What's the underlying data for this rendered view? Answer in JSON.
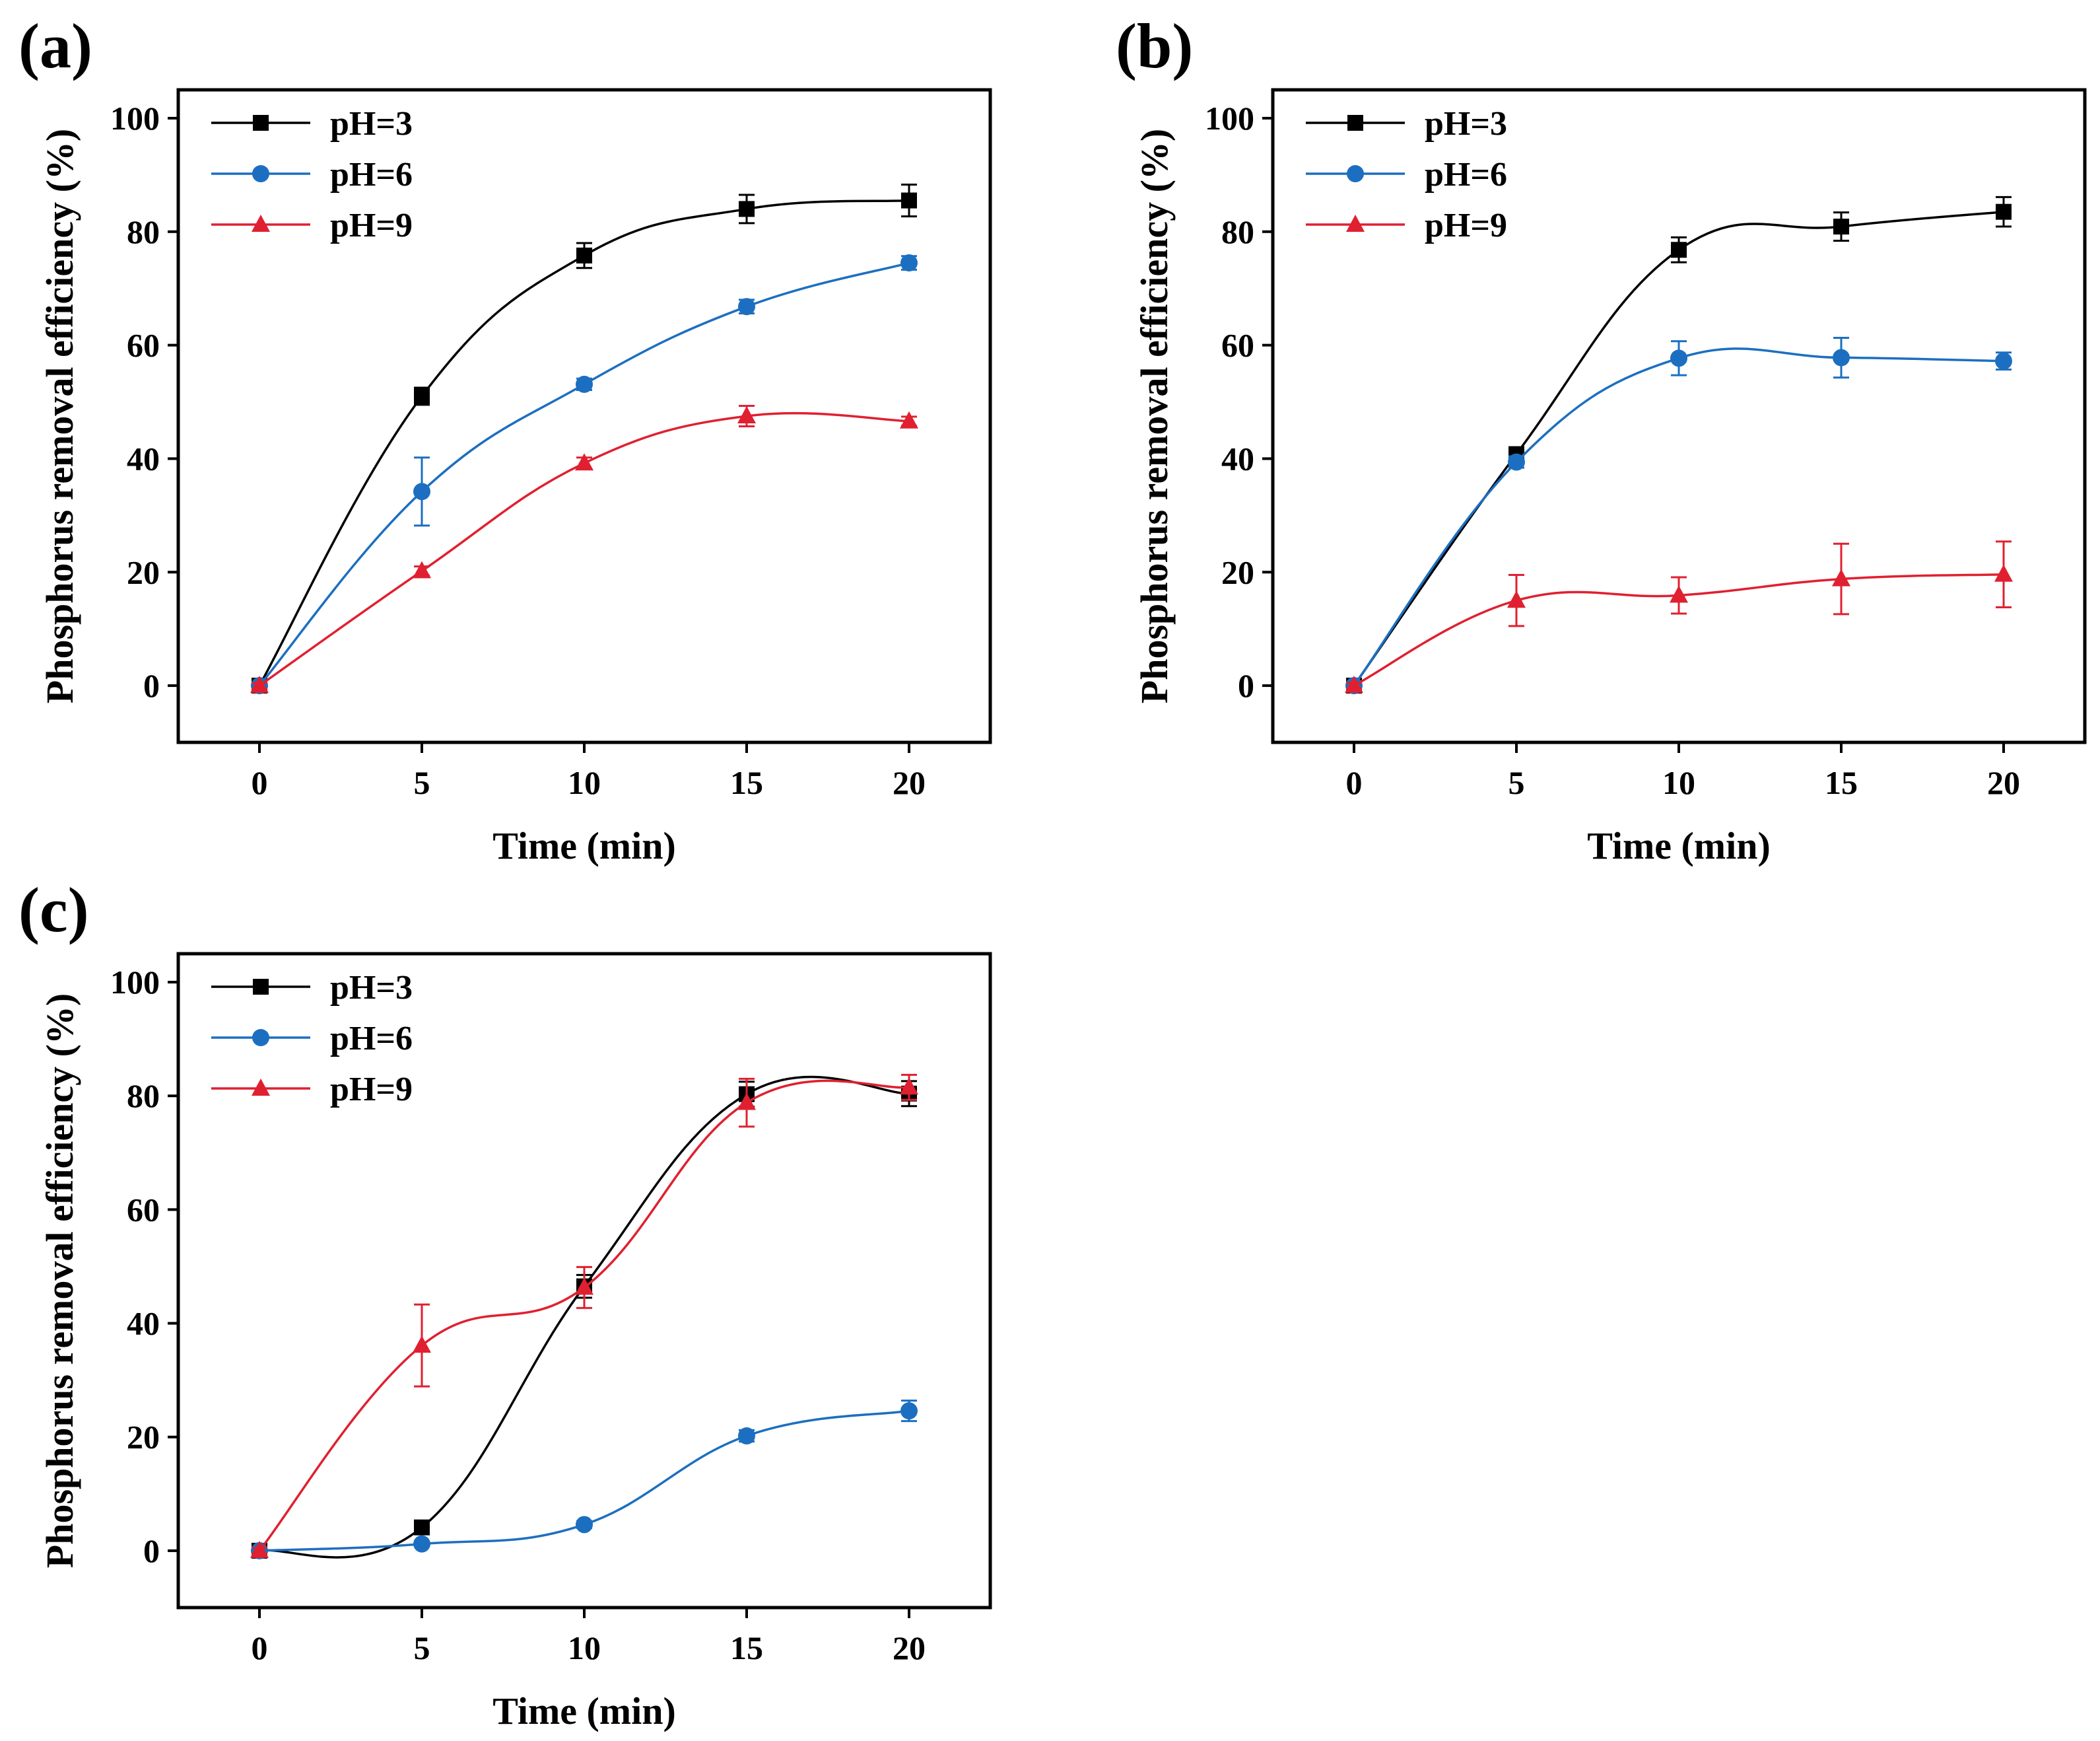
{
  "colors": {
    "pH3": "#000000",
    "pH6": "#1c6fc0",
    "pH9": "#e02030",
    "axis": "#000000",
    "background": "#ffffff"
  },
  "chart_data": [
    {
      "panel": "(a)",
      "type": "line",
      "xlabel": "Time (min)",
      "ylabel": "Phosphorus removal efficiency (%)",
      "x": [
        0,
        5,
        10,
        15,
        20
      ],
      "xlim": [
        -2.5,
        22.5
      ],
      "ylim": [
        -10,
        105
      ],
      "xticks": [
        0,
        5,
        10,
        15,
        20
      ],
      "yticks": [
        0,
        20,
        40,
        60,
        80,
        100
      ],
      "legend_position": "top-left",
      "series": [
        {
          "name": "pH=3",
          "marker": "square",
          "color_key": "pH3",
          "values": [
            0,
            51,
            75.8,
            84,
            85.5
          ],
          "errors": [
            0.5,
            1.5,
            2.2,
            2.5,
            2.8
          ]
        },
        {
          "name": "pH=6",
          "marker": "circle",
          "color_key": "pH6",
          "values": [
            0,
            34.2,
            53.1,
            66.8,
            74.5
          ],
          "errors": [
            0.5,
            6,
            1,
            1.2,
            1.2
          ]
        },
        {
          "name": "pH=9",
          "marker": "triangle",
          "color_key": "pH9",
          "values": [
            0,
            20.2,
            39.2,
            47.5,
            46.6
          ],
          "errors": [
            0.5,
            0.8,
            1,
            1.8,
            0.8
          ]
        }
      ]
    },
    {
      "panel": "(b)",
      "type": "line",
      "xlabel": "Time (min)",
      "ylabel": "Phosphorus removal efficiency (%)",
      "x": [
        0,
        5,
        10,
        15,
        20
      ],
      "xlim": [
        -2.5,
        22.5
      ],
      "ylim": [
        -10,
        105
      ],
      "xticks": [
        0,
        5,
        10,
        15,
        20
      ],
      "yticks": [
        0,
        20,
        40,
        60,
        80,
        100
      ],
      "legend_position": "top-left",
      "series": [
        {
          "name": "pH=3",
          "marker": "square",
          "color_key": "pH3",
          "values": [
            0,
            40.8,
            76.8,
            80.9,
            83.5
          ],
          "errors": [
            0.5,
            1,
            2.2,
            2.5,
            2.6
          ]
        },
        {
          "name": "pH=6",
          "marker": "circle",
          "color_key": "pH6",
          "values": [
            0,
            39.4,
            57.7,
            57.8,
            57.2
          ],
          "errors": [
            0.5,
            1,
            3,
            3.5,
            1.5
          ]
        },
        {
          "name": "pH=9",
          "marker": "triangle",
          "color_key": "pH9",
          "values": [
            0,
            15,
            15.9,
            18.8,
            19.6
          ],
          "errors": [
            0.5,
            4.5,
            3.2,
            6.2,
            5.8
          ]
        }
      ]
    },
    {
      "panel": "(c)",
      "type": "line",
      "xlabel": "Time (min)",
      "ylabel": "Phosphorus removal efficiency (%)",
      "x": [
        0,
        5,
        10,
        15,
        20
      ],
      "xlim": [
        -2.5,
        22.5
      ],
      "ylim": [
        -10,
        105
      ],
      "xticks": [
        0,
        5,
        10,
        15,
        20
      ],
      "yticks": [
        0,
        20,
        40,
        60,
        80,
        100
      ],
      "legend_position": "top-left",
      "series": [
        {
          "name": "pH=3",
          "marker": "square",
          "color_key": "pH3",
          "values": [
            0,
            4.1,
            46.5,
            80.3,
            80.4
          ],
          "errors": [
            0.5,
            0.6,
            2,
            2.2,
            2.2
          ]
        },
        {
          "name": "pH=6",
          "marker": "circle",
          "color_key": "pH6",
          "values": [
            0,
            1.2,
            4.6,
            20.2,
            24.6
          ],
          "errors": [
            0.4,
            0.4,
            0.6,
            1,
            1.8
          ]
        },
        {
          "name": "pH=9",
          "marker": "triangle",
          "color_key": "pH9",
          "values": [
            0,
            36.1,
            46.3,
            78.8,
            81.5
          ],
          "errors": [
            0.5,
            7.2,
            3.6,
            4.2,
            2.2
          ]
        }
      ]
    }
  ]
}
